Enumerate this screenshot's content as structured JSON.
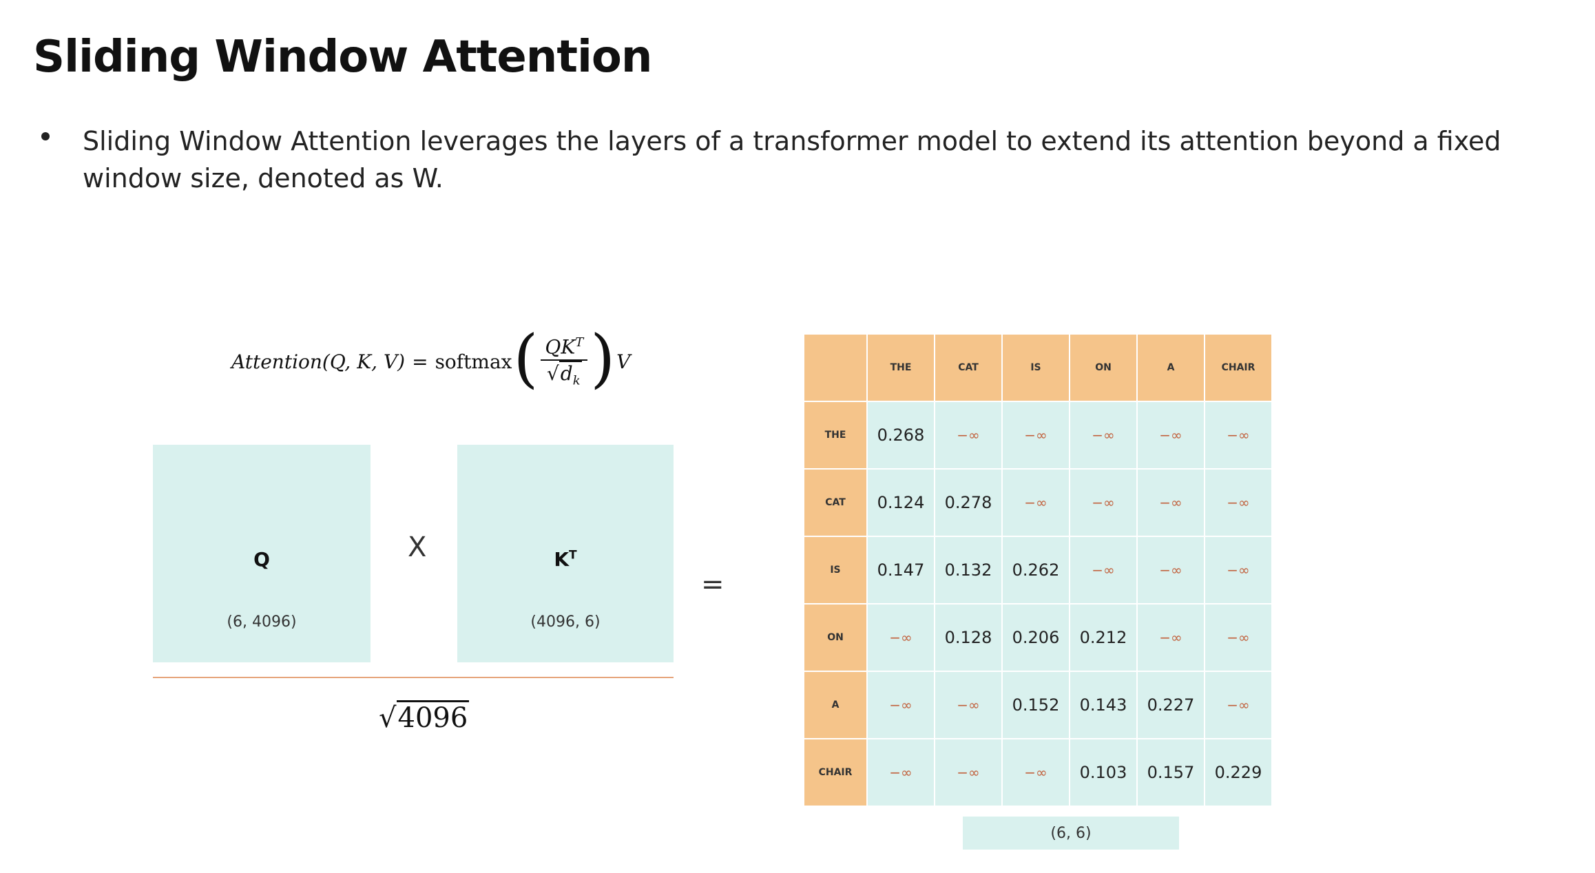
{
  "slide": {
    "title": "Sliding Window Attention",
    "bullets": [
      "Sliding Window Attention leverages the layers of a transformer model to extend its attention beyond a fixed window size, denoted as W."
    ]
  },
  "formula": {
    "lhs": "Attention(Q, K, V)",
    "equals": "=",
    "fn": "softmax",
    "numerator": "QK",
    "numerator_sup": "T",
    "den_sqrt": "√",
    "den_var": "d",
    "den_sub": "k",
    "tail": "V"
  },
  "matrices": {
    "q": {
      "label": "Q",
      "dims": "(6, 4096)"
    },
    "k": {
      "label": "K",
      "sup": "T",
      "dims": "(4096, 6)"
    },
    "times_symbol": "X",
    "equals_symbol": "=",
    "denominator_sqrt": "√",
    "denominator_value": "4096"
  },
  "table": {
    "headers": [
      "THE",
      "CAT",
      "IS",
      "ON",
      "A",
      "CHAIR"
    ],
    "rows": [
      {
        "label": "THE",
        "cells": [
          "0.268",
          "−∞",
          "−∞",
          "−∞",
          "−∞",
          "−∞"
        ]
      },
      {
        "label": "CAT",
        "cells": [
          "0.124",
          "0.278",
          "−∞",
          "−∞",
          "−∞",
          "−∞"
        ]
      },
      {
        "label": "IS",
        "cells": [
          "0.147",
          "0.132",
          "0.262",
          "−∞",
          "−∞",
          "−∞"
        ]
      },
      {
        "label": "ON",
        "cells": [
          "−∞",
          "0.128",
          "0.206",
          "0.212",
          "−∞",
          "−∞"
        ]
      },
      {
        "label": "A",
        "cells": [
          "−∞",
          "−∞",
          "0.152",
          "0.143",
          "0.227",
          "−∞"
        ]
      },
      {
        "label": "CHAIR",
        "cells": [
          "−∞",
          "−∞",
          "−∞",
          "0.103",
          "0.157",
          "0.229"
        ]
      }
    ],
    "dims": "(6, 6)"
  },
  "colors": {
    "header_fill": "#f5c48a",
    "cell_fill": "#d9f1ee",
    "neg_inf_text": "#c2623e",
    "divider": "#e6a57c"
  }
}
